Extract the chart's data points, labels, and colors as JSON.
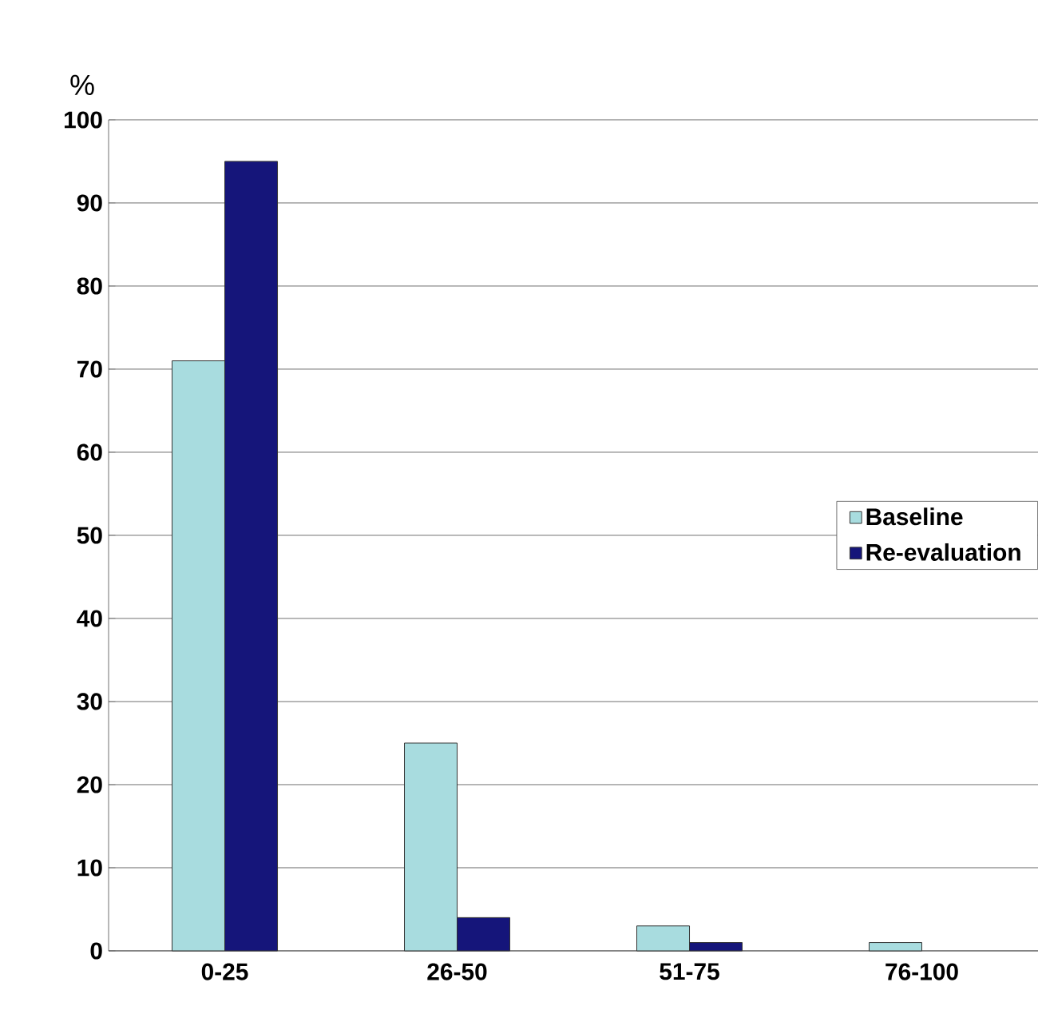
{
  "chart_data": {
    "type": "bar",
    "ylabel": "%",
    "categories": [
      "0-25",
      "26-50",
      "51-75",
      "76-100"
    ],
    "series": [
      {
        "name": "Baseline",
        "color": "#a8dcdf",
        "values": [
          71,
          25,
          3,
          1
        ]
      },
      {
        "name": "Re-evaluation",
        "color": "#15157a",
        "values": [
          95,
          4,
          1,
          null
        ]
      }
    ],
    "ylim": [
      0,
      100
    ],
    "yticks": [
      0,
      10,
      20,
      30,
      40,
      50,
      60,
      70,
      80,
      90,
      100
    ],
    "grid": "y",
    "legend": "right"
  }
}
